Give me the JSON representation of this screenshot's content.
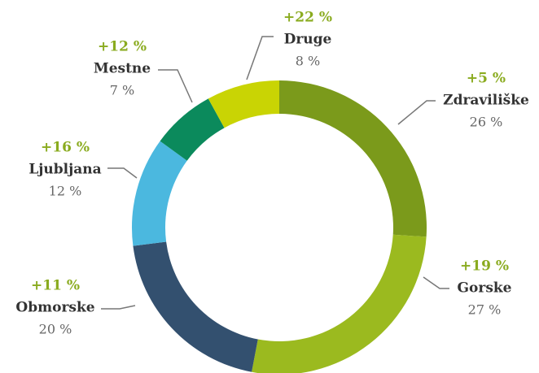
{
  "chart_data": {
    "type": "donut",
    "categories": [
      "Zdraviliške",
      "Gorske",
      "Obmorske",
      "Ljubljana",
      "Mestne",
      "Druge"
    ],
    "values": [
      26,
      27,
      20,
      12,
      7,
      8
    ],
    "value_labels": [
      "26 %",
      "27 %",
      "20 %",
      "12 %",
      "7 %",
      "8 %"
    ],
    "annotations": [
      "+5 %",
      "+19 %",
      "+11 %",
      "+16 %",
      "+12 %",
      "+22 %"
    ],
    "colors": [
      "#7b9a1b",
      "#9bba1f",
      "#33506f",
      "#4bb8df",
      "#0b8a5c",
      "#c9d404"
    ]
  }
}
